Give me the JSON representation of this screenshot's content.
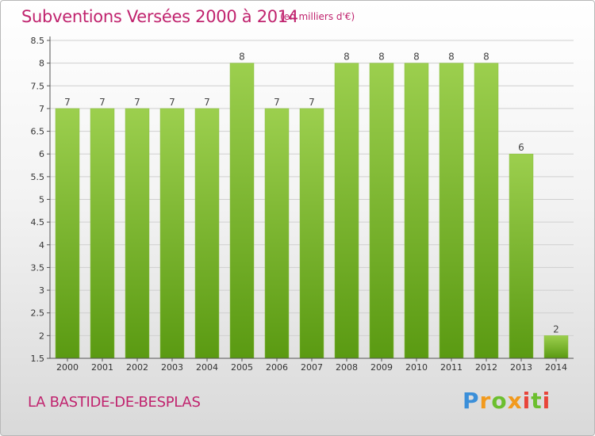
{
  "header": {
    "title": "Subventions Versées 2000 à 2014",
    "subtitle": "(en milliers d'€)"
  },
  "footer": {
    "commune": "LA BASTIDE-DE-BESPLAS",
    "brand": "Proxiti"
  },
  "colors": {
    "title": "#c0236e",
    "bar_top": "#9ccf4e",
    "bar_bottom": "#5a9a12"
  },
  "chart_data": {
    "type": "bar",
    "title": "Subventions Versées 2000 à 2014",
    "subtitle": "(en milliers d'€)",
    "xlabel": "",
    "ylabel": "",
    "categories": [
      "2000",
      "2001",
      "2002",
      "2003",
      "2004",
      "2005",
      "2006",
      "2007",
      "2008",
      "2009",
      "2010",
      "2011",
      "2012",
      "2013",
      "2014"
    ],
    "values": [
      7,
      7,
      7,
      7,
      7,
      8,
      7,
      7,
      8,
      8,
      8,
      8,
      8,
      6,
      2
    ],
    "data_labels": [
      "7",
      "7",
      "7",
      "7",
      "7",
      "8",
      "7",
      "7",
      "8",
      "8",
      "8",
      "8",
      "8",
      "6",
      "2"
    ],
    "ylim": [
      1.5,
      8.5
    ],
    "yticks": [
      "1.5",
      "2",
      "2.5",
      "3",
      "3.5",
      "4",
      "4.5",
      "5",
      "5.5",
      "6",
      "6.5",
      "7",
      "7.5",
      "8",
      "8.5"
    ],
    "grid": true,
    "legend": "none"
  }
}
